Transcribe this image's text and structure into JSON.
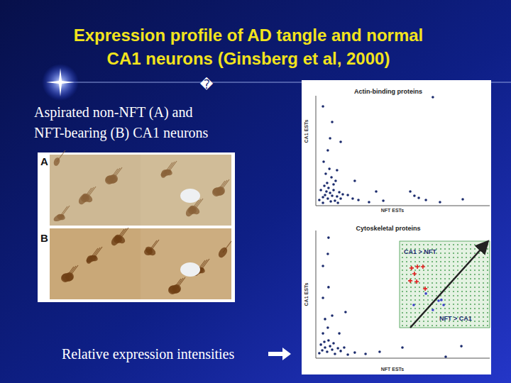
{
  "slide": {
    "title": [
      "Expression profile of AD tangle and normal",
      "CA1 neurons (Ginsberg et al, 2000)"
    ],
    "symbol": "�",
    "caption": [
      "Aspirated non-NFT (A) and",
      "NFT-bearing (B) CA1 neurons"
    ],
    "panel_labels": [
      "A",
      "B"
    ],
    "footer": "Relative expression intensities"
  },
  "chart_data": [
    {
      "type": "scatter",
      "title": "Actin-binding proteins",
      "x_label": "NFT ESTs",
      "y_label": "CA1 ESTs",
      "xlim": [
        0,
        100
      ],
      "ylim": [
        0,
        100
      ],
      "xticks": [],
      "yticks": [],
      "tick_labels": false,
      "grid": false,
      "series": [
        {
          "color": "#1a2a6c",
          "marker": "circle",
          "x": [
            2.0,
            4.1,
            5.3,
            6.1,
            6.9,
            8.2,
            9.4,
            10.2,
            11.0,
            12.2,
            13.5,
            7.3,
            4.9,
            2.9,
            8.6,
            14.3,
            15.5,
            12.7,
            4.1,
            6.5,
            10.2,
            11.4,
            9.0,
            5.7,
            7.8,
            4.5,
            6.9,
            12.2,
            18.4,
            21.2,
            24.5,
            30.6,
            38.8,
            54.3,
            56.7,
            59.2,
            63.3,
            71.4,
            84.5,
            14.3,
            4.1,
            9.4,
            67.3,
            22.4,
            34.7,
            8.2
          ],
          "values": [
            5.2,
            7.7,
            9.7,
            12.9,
            6.5,
            11.6,
            9.0,
            14.2,
            4.5,
            8.4,
            12.3,
            16.1,
            18.1,
            14.2,
            3.9,
            6.5,
            10.3,
            2.6,
            2.6,
            20.6,
            19.4,
            22.6,
            25.8,
            29.0,
            33.5,
            40.0,
            50.3,
            32.3,
            9.7,
            6.5,
            5.2,
            3.2,
            4.5,
            12.9,
            9.0,
            7.1,
            5.2,
            3.2,
            5.8,
            58.1,
            90.3,
            76.1,
            98.7,
            22.6,
            12.9,
            61.3
          ]
        }
      ]
    },
    {
      "type": "scatter",
      "title": "Cytoskeletal proteins",
      "x_label": "NFT ESTs",
      "y_label": "CA1 ESTs",
      "xlim": [
        0,
        100
      ],
      "ylim": [
        0,
        100
      ],
      "xticks": [],
      "yticks": [],
      "tick_labels": false,
      "grid": false,
      "annotations": [
        "CA1 > NFT",
        "NFT > CA1"
      ],
      "series": [
        {
          "color": "#1a2a6c",
          "marker": "circle",
          "x": [
            2.0,
            3.7,
            5.3,
            6.5,
            8.2,
            9.4,
            11.0,
            12.7,
            2.9,
            4.9,
            7.3,
            10.2,
            14.3,
            16.3,
            4.1,
            6.9,
            5.3,
            9.4,
            4.1,
            7.3,
            4.1,
            6.9,
            7.3,
            18.4,
            22.4,
            28.6,
            36.7,
            49.8,
            74.7,
            83.7,
            13.5,
            17.1
          ],
          "values": [
            3.9,
            6.1,
            8.3,
            5.0,
            9.4,
            6.7,
            3.3,
            7.8,
            10.6,
            12.8,
            13.9,
            11.7,
            5.6,
            8.3,
            19.4,
            23.9,
            30.6,
            33.3,
            47.2,
            55.6,
            72.2,
            81.7,
            94.4,
            2.8,
            4.4,
            3.3,
            5.0,
            8.3,
            1.1,
            9.4,
            19.4,
            36.1
          ]
        },
        {
          "color": "#e02020",
          "marker": "plus",
          "x": [
            55.1,
            58.4,
            61.6,
            56.7,
            54.3,
            58.0,
            62.9
          ],
          "values": [
            70.6,
            71.7,
            71.7,
            66.1,
            60.6,
            60.0,
            54.4
          ]
        },
        {
          "color": "#3a40c8",
          "marker": "circle",
          "x": [
            63.3,
            70.6,
            73.5,
            72.2,
            67.3,
            56.3
          ],
          "values": [
            50.6,
            45.0,
            41.7,
            45.6,
            37.8,
            41.7
          ]
        }
      ]
    }
  ]
}
